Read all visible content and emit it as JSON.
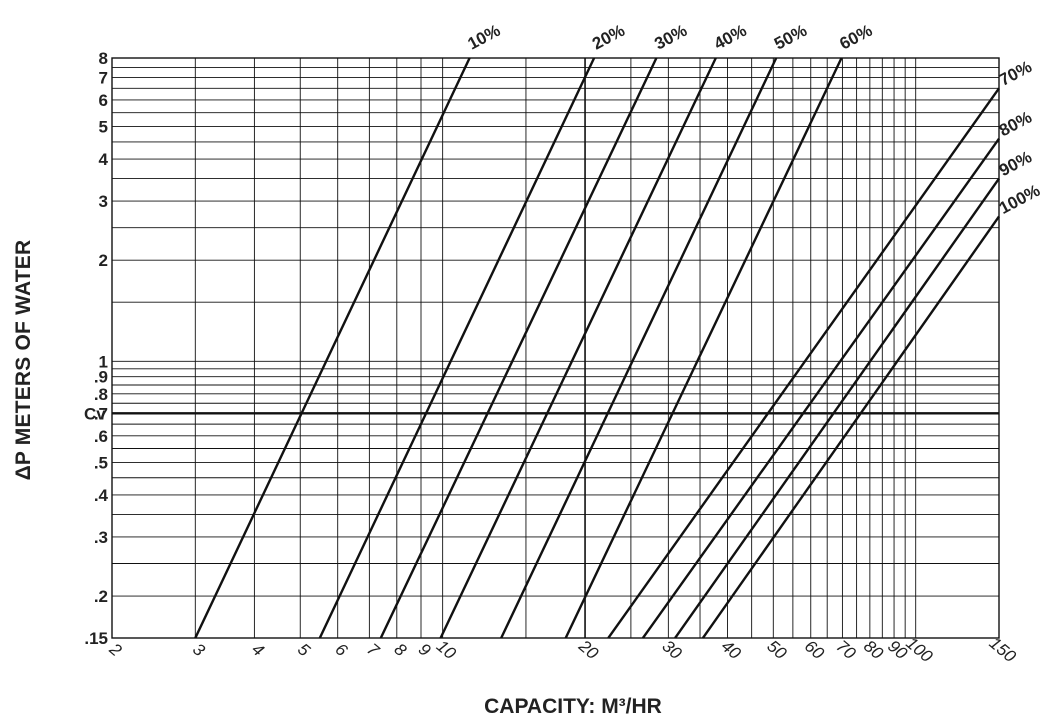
{
  "chart_data": {
    "type": "line",
    "xlabel": "CAPACITY: M³/HR",
    "ylabel": "ΔP METERS OF WATER",
    "x_scale": "log",
    "y_scale": "log",
    "xlim": [
      2,
      150
    ],
    "ylim": [
      0.15,
      8
    ],
    "grid": true,
    "x_ticks": [
      {
        "v": 2,
        "l": "2"
      },
      {
        "v": 3,
        "l": "3"
      },
      {
        "v": 4,
        "l": "4"
      },
      {
        "v": 5,
        "l": "5"
      },
      {
        "v": 6,
        "l": "6"
      },
      {
        "v": 7,
        "l": "7"
      },
      {
        "v": 8,
        "l": "8"
      },
      {
        "v": 9,
        "l": "9"
      },
      {
        "v": 10,
        "l": "10"
      },
      {
        "v": 20,
        "l": "20"
      },
      {
        "v": 30,
        "l": "30"
      },
      {
        "v": 40,
        "l": "40"
      },
      {
        "v": 50,
        "l": "50"
      },
      {
        "v": 60,
        "l": "60"
      },
      {
        "v": 70,
        "l": "70"
      },
      {
        "v": 80,
        "l": "80"
      },
      {
        "v": 90,
        "l": "90"
      },
      {
        "v": 100,
        "l": "100"
      },
      {
        "v": 150,
        "l": "150"
      }
    ],
    "y_ticks": [
      {
        "v": 0.15,
        "l": ".15"
      },
      {
        "v": 0.2,
        "l": ".2"
      },
      {
        "v": 0.3,
        "l": ".3"
      },
      {
        "v": 0.4,
        "l": ".4"
      },
      {
        "v": 0.5,
        "l": ".5"
      },
      {
        "v": 0.6,
        "l": ".6"
      },
      {
        "v": 0.7,
        "l": ".7"
      },
      {
        "v": 0.8,
        "l": ".8"
      },
      {
        "v": 0.9,
        "l": ".9"
      },
      {
        "v": 1,
        "l": "1"
      },
      {
        "v": 2,
        "l": "2"
      },
      {
        "v": 3,
        "l": "3"
      },
      {
        "v": 4,
        "l": "4"
      },
      {
        "v": 5,
        "l": "5"
      },
      {
        "v": 6,
        "l": "6"
      },
      {
        "v": 7,
        "l": "7"
      },
      {
        "v": 8,
        "l": "8"
      }
    ],
    "annotations": [
      {
        "text": "Cv",
        "y": 0.7
      }
    ],
    "series": [
      {
        "name": "10%",
        "points": [
          [
            3.0,
            0.15
          ],
          [
            11.4,
            8.0
          ]
        ]
      },
      {
        "name": "20%",
        "points": [
          [
            5.5,
            0.15
          ],
          [
            20.9,
            8.0
          ]
        ]
      },
      {
        "name": "30%",
        "points": [
          [
            7.4,
            0.15
          ],
          [
            28.3,
            8.0
          ]
        ]
      },
      {
        "name": "40%",
        "points": [
          [
            9.9,
            0.15
          ],
          [
            37.8,
            8.0
          ]
        ]
      },
      {
        "name": "50%",
        "points": [
          [
            13.3,
            0.15
          ],
          [
            50.7,
            8.0
          ]
        ]
      },
      {
        "name": "60%",
        "points": [
          [
            18.2,
            0.15
          ],
          [
            69.7,
            8.0
          ]
        ]
      },
      {
        "name": "70%",
        "points": [
          [
            22.4,
            0.15
          ],
          [
            150.0,
            6.5
          ]
        ]
      },
      {
        "name": "80%",
        "points": [
          [
            26.5,
            0.15
          ],
          [
            150.0,
            4.6
          ]
        ]
      },
      {
        "name": "90%",
        "points": [
          [
            31.0,
            0.15
          ],
          [
            150.0,
            3.5
          ]
        ]
      },
      {
        "name": "100%",
        "points": [
          [
            35.5,
            0.15
          ],
          [
            150.0,
            2.7
          ]
        ]
      }
    ]
  }
}
